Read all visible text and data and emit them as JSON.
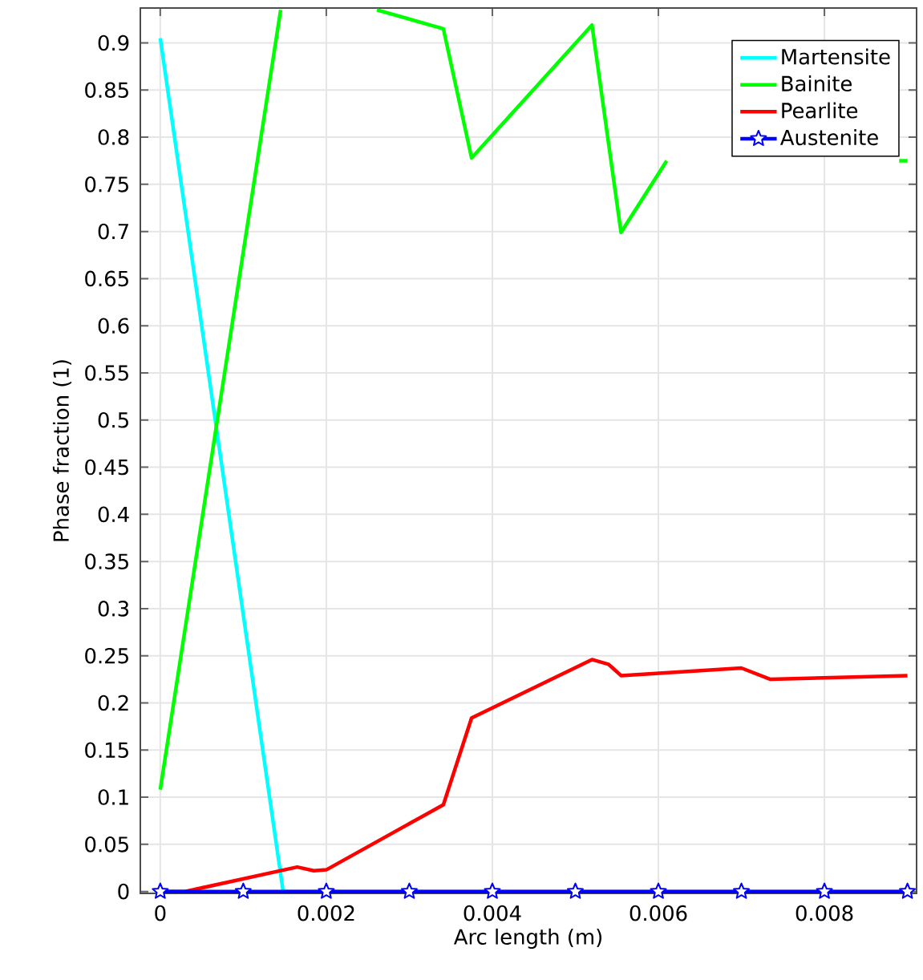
{
  "chart_data": {
    "type": "line",
    "xlabel": "Arc length (m)",
    "ylabel": "Phase fraction (1)",
    "xlim": [
      -0.00024,
      0.00911
    ],
    "ylim": [
      -0.002,
      0.937
    ],
    "xticks": [
      0,
      0.002,
      0.004,
      0.006,
      0.008
    ],
    "yticks": [
      0,
      0.05,
      0.1,
      0.15,
      0.2,
      0.25,
      0.3,
      0.35,
      0.4,
      0.45,
      0.5,
      0.55,
      0.6,
      0.65,
      0.7,
      0.75,
      0.8,
      0.85,
      0.9
    ],
    "grid": true,
    "legend": "top right",
    "series": [
      {
        "name": "Martensite",
        "color": "#00ffff",
        "marker": "none",
        "x": [
          0,
          0.00148,
          0.009
        ],
        "values": [
          0.905,
          0,
          0
        ]
      },
      {
        "name": "Bainite",
        "color": "#00ff00",
        "marker": "none",
        "x": [
          0,
          0.00145,
          0.00153,
          0.00261,
          0.00341,
          0.00375,
          0.0052,
          0.00555,
          0.0061,
          0.0075,
          0.0089,
          0.009
        ],
        "values": [
          0.108,
          0.935,
          null,
          0.935,
          0.915,
          0.778,
          0.919,
          0.699,
          0.775,
          null,
          0.775,
          0.775
        ]
      },
      {
        "name": "Pearlite",
        "color": "#ff0000",
        "marker": "none",
        "x": [
          0,
          0.0003,
          0.00165,
          0.00185,
          0.002,
          0.00341,
          0.00375,
          0.0052,
          0.0054,
          0.00555,
          0.007,
          0.00735,
          0.009
        ],
        "values": [
          0,
          0,
          0.026,
          0.022,
          0.023,
          0.092,
          0.184,
          0.246,
          0.241,
          0.229,
          0.237,
          0.225,
          0.229
        ]
      },
      {
        "name": "Austenite",
        "color": "#0000ff",
        "marker": "star",
        "x": [
          0,
          0.001,
          0.002,
          0.003,
          0.004,
          0.005,
          0.006,
          0.007,
          0.008,
          0.009
        ],
        "values": [
          0,
          0,
          0,
          0,
          0,
          0,
          0,
          0,
          0,
          0
        ]
      }
    ]
  }
}
